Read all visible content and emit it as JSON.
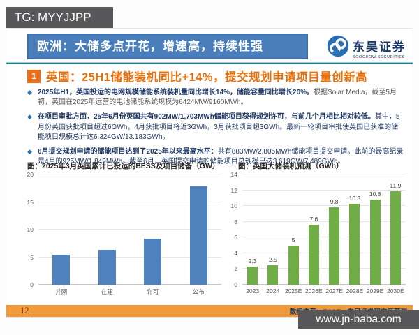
{
  "watermarks": {
    "tg": "TG: MYYJJPP",
    "site": "www.jn-baba.com"
  },
  "header": {
    "title": "欧洲：大储多点开花，增速高，持续性强",
    "logo_name": "东吴证券",
    "logo_sub": "SOOCHOW SECURITIES"
  },
  "banner": {
    "number": "1",
    "text": "英国：25H1储能装机同比+14%，提交规划申请项目量创新高"
  },
  "bullets": [
    {
      "lead": "2025年H1，英国投运的电网规模储能系统装机量同比增长14%，储能容量同比增长20%。",
      "rest": "根据Solar Media，截至5月初，英国在2025年运营的电池储能系统规模为6424MW/9160MWh。"
    },
    {
      "lead": "在项目审批方面，25年6月份英国共有902MW/1,703MWh储能项目获得规划许可，与前几个月相比相对较低。",
      "rest": "其中，5月份英国获批项目超过6GWh，4月获批项目将近3GWh，3月获批项目超3GWh。最新一轮项目审批使英国已获准的储能项目规模总计达6.324GW/13.183GWh。"
    },
    {
      "lead": "6月提交规划申请的储能项目达到了2025年以来最高水平：",
      "rest": "共有883MW/2,805MWh储能项目提交申请。此前的最高纪录是4月的925MW/1,849MWh。截至6月，英国提交申请的储能项目总规模已达3.619GW/7.489GWh。"
    }
  ],
  "chart_data": [
    {
      "type": "bar",
      "title": "图：2025年3月英国累计已投运的BESS及项目储备（GW）",
      "categories": [
        "并网",
        "在建",
        "许可",
        "公布"
      ],
      "values": [
        5.4,
        6.3,
        8.3,
        17.9
      ],
      "ylim": [
        0,
        20
      ],
      "yticks": [
        0,
        5,
        10,
        15,
        20
      ],
      "bar_color": "#4f81bd",
      "show_labels": false,
      "grid": true,
      "xlabel": "",
      "ylabel": ""
    },
    {
      "type": "bar",
      "title": "图：英国大储装机预测（GWh）",
      "categories": [
        "2023",
        "2024",
        "2025E",
        "2026E",
        "2027E",
        "2028E",
        "2029E",
        "2030E"
      ],
      "values": [
        2.3,
        2.5,
        5,
        7.6,
        9.8,
        10.3,
        10.8,
        11.9
      ],
      "ylim": [
        0,
        14
      ],
      "yticks": [
        0,
        2,
        4,
        6,
        8,
        10,
        12,
        14
      ],
      "bar_color": "#70ad47",
      "show_labels": true,
      "grid": true,
      "xlabel": "",
      "ylabel": ""
    }
  ],
  "footer": {
    "page": "12",
    "source": "数据来源：EASE，东吴证券研究所预测"
  },
  "colors": {
    "header_blue": "#4a7ebb",
    "banner_orange": "#e8701a",
    "divider_teal": "#2a7f8f",
    "footer_orange": "#ef9a3b",
    "text_navy": "#1f3864",
    "bar_blue": "#4f81bd",
    "bar_green": "#70ad47",
    "watermark_gray": "#58585a"
  }
}
